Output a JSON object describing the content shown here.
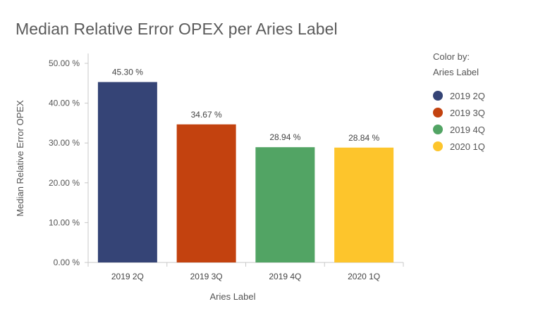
{
  "chart_data": {
    "type": "bar",
    "title": "Median Relative Error OPEX per Aries Label",
    "xlabel": "Aries Label",
    "ylabel": "Median Relative Error OPEX",
    "categories": [
      "2019 2Q",
      "2019 3Q",
      "2019 4Q",
      "2020 1Q"
    ],
    "values": [
      45.3,
      34.67,
      28.94,
      28.84
    ],
    "data_labels": [
      "45.30 %",
      "34.67 %",
      "28.94 %",
      "28.84 %"
    ],
    "colors": [
      "#354476",
      "#c3420f",
      "#52a464",
      "#fdc52c"
    ],
    "ylim": [
      0,
      50
    ],
    "yticks": [
      0,
      10,
      20,
      30,
      40,
      50
    ],
    "ytick_labels": [
      "0.00 %",
      "10.00 %",
      "20.00 %",
      "30.00 %",
      "40.00 %",
      "50.00 %"
    ],
    "grid": false,
    "legend": {
      "position": "right",
      "title_line1": "Color by:",
      "title_line2": "Aries Label",
      "entries": [
        "2019 2Q",
        "2019 3Q",
        "2019 4Q",
        "2020 1Q"
      ]
    }
  }
}
